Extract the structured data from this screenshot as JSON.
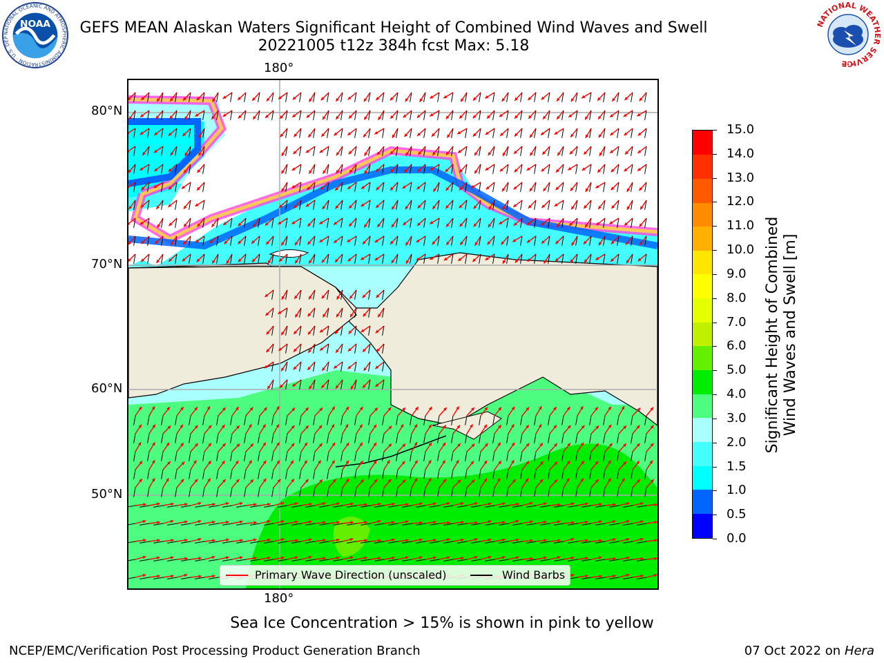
{
  "header": {
    "title_line1": "GEFS MEAN Alaskan Waters Significant Height of Combined Wind Waves and Swell",
    "title_line2": "20221005 t12z 384h fcst   Max: 5.18"
  },
  "logos": {
    "left": {
      "name": "noaa-logo",
      "text": "NOAA",
      "ring_text": "NATIONAL OCEANIC AND ATMOSPHERIC ADMINISTRATION · U.S. DEPARTMENT OF COMMERCE"
    },
    "right": {
      "name": "nws-logo",
      "ring_text": "NATIONAL WEATHER SERVICE"
    }
  },
  "map": {
    "lon_label_top": "180°",
    "lon_label_bottom": "180°",
    "lat_labels": [
      "80°N",
      "70°N",
      "60°N",
      "50°N"
    ],
    "legend": {
      "wave_direction": "Primary Wave Direction (unscaled)",
      "wind_barbs": "Wind Barbs"
    },
    "colors": {
      "land": "#efecdc",
      "grid": "#aaaaaa",
      "wave_arrow": "#ff0000",
      "wind_barb": "#000000"
    }
  },
  "colorbar": {
    "title_line1": "Significant Height of Combined",
    "title_line2": "Wind Waves and Swell [m]",
    "tick_labels": [
      "0.0",
      "0.5",
      "1.0",
      "1.5",
      "2.0",
      "3.0",
      "4.0",
      "5.0",
      "6.0",
      "7.0",
      "8.0",
      "9.0",
      "10.0",
      "11.0",
      "12.0",
      "13.0",
      "14.0",
      "15.0"
    ],
    "colors": [
      "#0000ff",
      "#0066ff",
      "#00ffff",
      "#44fdfd",
      "#a8fffe",
      "#4dfd80",
      "#00ec00",
      "#64ee00",
      "#c0f000",
      "#e6ff00",
      "#ffff00",
      "#ffe600",
      "#ffb000",
      "#ff8c00",
      "#ff5a00",
      "#ff3000",
      "#ff0000"
    ]
  },
  "notes": {
    "sea_ice": "Sea Ice Concentration > 15% is shown in pink to yellow"
  },
  "footer": {
    "left": "NCEP/EMC/Verification Post Processing Product Generation Branch",
    "right_date": "07 Oct 2022 on ",
    "right_host": "Hera"
  }
}
